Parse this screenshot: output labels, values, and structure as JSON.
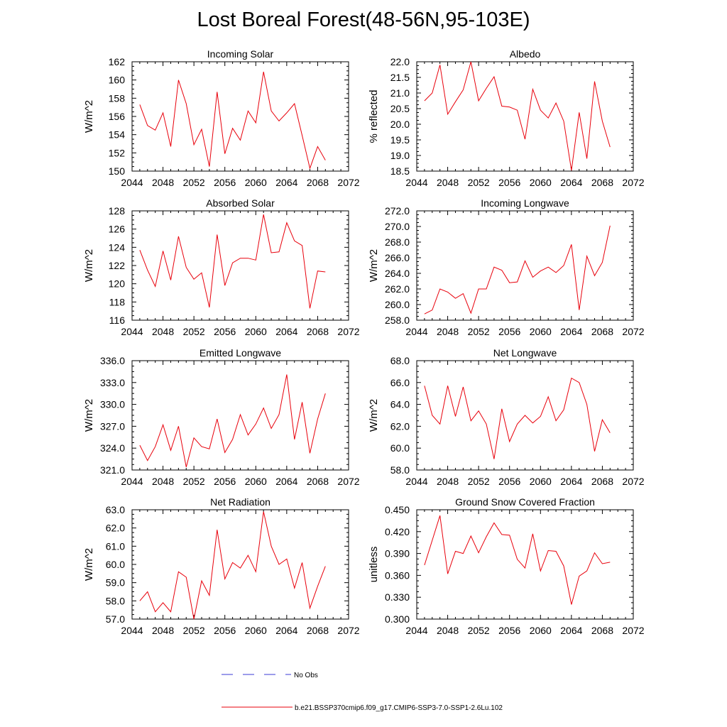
{
  "title": "Lost Boreal Forest(48-56N,95-103E)",
  "legend": [
    {
      "label": "No Obs",
      "color": "#3b3bd6",
      "style": "dashed"
    },
    {
      "label": "b.e21.BSSP370cmip6.f09_g17.CMIP6-SSP3-7.0-SSP1-2.6Lu.102",
      "color": "#e8000b",
      "style": "solid"
    }
  ],
  "series_color": "#e8000b",
  "chart_data": [
    {
      "type": "line",
      "title": "Incoming Solar",
      "ylabel": "W/m^2",
      "xlim": [
        2044,
        2072
      ],
      "ylim": [
        150,
        162
      ],
      "xticks": [
        2044,
        2048,
        2052,
        2056,
        2060,
        2064,
        2068,
        2072
      ],
      "yticks": [
        150,
        152,
        154,
        156,
        158,
        160,
        162
      ],
      "ytick_decimals": 0,
      "x": [
        2045,
        2046,
        2047,
        2048,
        2049,
        2050,
        2051,
        2052,
        2053,
        2054,
        2055,
        2056,
        2057,
        2058,
        2059,
        2060,
        2061,
        2062,
        2063,
        2064,
        2065,
        2066,
        2067,
        2068,
        2069
      ],
      "values": [
        157.3,
        155.0,
        154.5,
        156.4,
        152.7,
        160.0,
        157.4,
        152.9,
        154.6,
        150.5,
        158.7,
        151.9,
        154.7,
        153.4,
        156.6,
        155.3,
        160.9,
        156.6,
        155.5,
        156.4,
        157.4,
        153.9,
        150.3,
        152.7,
        151.2
      ]
    },
    {
      "type": "line",
      "title": "Albedo",
      "ylabel": "% reflected",
      "xlim": [
        2044,
        2072
      ],
      "ylim": [
        18.5,
        22.0
      ],
      "xticks": [
        2044,
        2048,
        2052,
        2056,
        2060,
        2064,
        2068,
        2072
      ],
      "yticks": [
        18.5,
        19.0,
        19.5,
        20.0,
        20.5,
        21.0,
        21.5,
        22.0
      ],
      "ytick_decimals": 1,
      "x": [
        2045,
        2046,
        2047,
        2048,
        2049,
        2050,
        2051,
        2052,
        2053,
        2054,
        2055,
        2056,
        2057,
        2058,
        2059,
        2060,
        2061,
        2062,
        2063,
        2064,
        2065,
        2066,
        2067,
        2068,
        2069
      ],
      "values": [
        20.75,
        21.0,
        21.9,
        20.32,
        20.72,
        21.1,
        22.0,
        20.75,
        21.15,
        21.52,
        20.58,
        20.55,
        20.45,
        19.52,
        21.12,
        20.45,
        20.2,
        20.68,
        20.1,
        18.52,
        20.38,
        18.9,
        21.37,
        20.1,
        19.27
      ]
    },
    {
      "type": "line",
      "title": "Absorbed Solar",
      "ylabel": "W/m^2",
      "xlim": [
        2044,
        2072
      ],
      "ylim": [
        116,
        128
      ],
      "xticks": [
        2044,
        2048,
        2052,
        2056,
        2060,
        2064,
        2068,
        2072
      ],
      "yticks": [
        116,
        118,
        120,
        122,
        124,
        126,
        128
      ],
      "ytick_decimals": 0,
      "x": [
        2045,
        2046,
        2047,
        2048,
        2049,
        2050,
        2051,
        2052,
        2053,
        2054,
        2055,
        2056,
        2057,
        2058,
        2059,
        2060,
        2061,
        2062,
        2063,
        2064,
        2065,
        2066,
        2067,
        2068,
        2069
      ],
      "values": [
        123.7,
        121.5,
        119.7,
        123.6,
        120.4,
        125.2,
        121.8,
        120.5,
        121.2,
        117.4,
        125.4,
        119.8,
        122.3,
        122.8,
        122.8,
        122.6,
        127.6,
        123.4,
        123.5,
        126.7,
        124.7,
        124.2,
        117.3,
        121.4,
        121.3
      ]
    },
    {
      "type": "line",
      "title": "Incoming Longwave",
      "ylabel": "W/m^2",
      "xlim": [
        2044,
        2072
      ],
      "ylim": [
        258.0,
        272.0
      ],
      "xticks": [
        2044,
        2048,
        2052,
        2056,
        2060,
        2064,
        2068,
        2072
      ],
      "yticks": [
        258.0,
        260.0,
        262.0,
        264.0,
        266.0,
        268.0,
        270.0,
        272.0
      ],
      "ytick_decimals": 1,
      "x": [
        2045,
        2046,
        2047,
        2048,
        2049,
        2050,
        2051,
        2052,
        2053,
        2054,
        2055,
        2056,
        2057,
        2058,
        2059,
        2060,
        2061,
        2062,
        2063,
        2064,
        2065,
        2066,
        2067,
        2068,
        2069
      ],
      "values": [
        258.8,
        259.3,
        262.0,
        261.6,
        260.8,
        261.4,
        258.9,
        262.0,
        262.0,
        264.8,
        264.4,
        262.8,
        262.9,
        265.6,
        263.5,
        264.3,
        264.8,
        264.1,
        265.0,
        267.7,
        259.3,
        266.2,
        263.7,
        265.4,
        270.1
      ]
    },
    {
      "type": "line",
      "title": "Emitted Longwave",
      "ylabel": "W/m^2",
      "xlim": [
        2044,
        2072
      ],
      "ylim": [
        321.0,
        336.0
      ],
      "xticks": [
        2044,
        2048,
        2052,
        2056,
        2060,
        2064,
        2068,
        2072
      ],
      "yticks": [
        321.0,
        324.0,
        327.0,
        330.0,
        333.0,
        336.0
      ],
      "ytick_decimals": 1,
      "x": [
        2045,
        2046,
        2047,
        2048,
        2049,
        2050,
        2051,
        2052,
        2053,
        2054,
        2055,
        2056,
        2057,
        2058,
        2059,
        2060,
        2061,
        2062,
        2063,
        2064,
        2065,
        2066,
        2067,
        2068,
        2069
      ],
      "values": [
        324.4,
        322.3,
        324.2,
        327.2,
        323.7,
        327.0,
        321.4,
        325.4,
        324.2,
        323.9,
        328.0,
        323.4,
        325.2,
        328.6,
        325.8,
        327.3,
        329.5,
        326.7,
        328.6,
        334.1,
        325.2,
        330.3,
        323.3,
        328.0,
        331.5
      ]
    },
    {
      "type": "line",
      "title": "Net Longwave",
      "ylabel": "W/m^2",
      "xlim": [
        2044,
        2072
      ],
      "ylim": [
        58.0,
        68.0
      ],
      "xticks": [
        2044,
        2048,
        2052,
        2056,
        2060,
        2064,
        2068,
        2072
      ],
      "yticks": [
        58.0,
        60.0,
        62.0,
        64.0,
        66.0,
        68.0
      ],
      "ytick_decimals": 1,
      "x": [
        2045,
        2046,
        2047,
        2048,
        2049,
        2050,
        2051,
        2052,
        2053,
        2054,
        2055,
        2056,
        2057,
        2058,
        2059,
        2060,
        2061,
        2062,
        2063,
        2064,
        2065,
        2066,
        2067,
        2068,
        2069
      ],
      "values": [
        65.7,
        63.0,
        62.2,
        65.7,
        62.9,
        65.6,
        62.5,
        63.4,
        62.2,
        59.0,
        63.6,
        60.6,
        62.2,
        63.0,
        62.3,
        62.9,
        64.7,
        62.5,
        63.5,
        66.4,
        66.0,
        64.0,
        59.7,
        62.6,
        61.4
      ]
    },
    {
      "type": "line",
      "title": "Net Radiation",
      "ylabel": "W/m^2",
      "xlim": [
        2044,
        2072
      ],
      "ylim": [
        57.0,
        63.0
      ],
      "xticks": [
        2044,
        2048,
        2052,
        2056,
        2060,
        2064,
        2068,
        2072
      ],
      "yticks": [
        57.0,
        58.0,
        59.0,
        60.0,
        61.0,
        62.0,
        63.0
      ],
      "ytick_decimals": 1,
      "x": [
        2045,
        2046,
        2047,
        2048,
        2049,
        2050,
        2051,
        2052,
        2053,
        2054,
        2055,
        2056,
        2057,
        2058,
        2059,
        2060,
        2061,
        2062,
        2063,
        2064,
        2065,
        2066,
        2067,
        2068,
        2069
      ],
      "values": [
        58.0,
        58.5,
        57.4,
        57.9,
        57.4,
        59.6,
        59.3,
        57.0,
        59.1,
        58.3,
        61.9,
        59.2,
        60.1,
        59.8,
        60.5,
        59.6,
        62.9,
        61.0,
        60.0,
        60.3,
        58.7,
        60.1,
        57.6,
        58.8,
        59.9
      ]
    },
    {
      "type": "line",
      "title": "Ground Snow Covered Fraction",
      "ylabel": "unitless",
      "xlim": [
        2044,
        2072
      ],
      "ylim": [
        0.3,
        0.45
      ],
      "xticks": [
        2044,
        2048,
        2052,
        2056,
        2060,
        2064,
        2068,
        2072
      ],
      "yticks": [
        0.3,
        0.33,
        0.36,
        0.39,
        0.42,
        0.45
      ],
      "ytick_decimals": 3,
      "x": [
        2045,
        2046,
        2047,
        2048,
        2049,
        2050,
        2051,
        2052,
        2053,
        2054,
        2055,
        2056,
        2057,
        2058,
        2059,
        2060,
        2061,
        2062,
        2063,
        2064,
        2065,
        2066,
        2067,
        2068,
        2069
      ],
      "values": [
        0.374,
        0.408,
        0.442,
        0.362,
        0.393,
        0.39,
        0.414,
        0.391,
        0.413,
        0.432,
        0.416,
        0.415,
        0.382,
        0.37,
        0.417,
        0.366,
        0.394,
        0.393,
        0.373,
        0.32,
        0.359,
        0.366,
        0.391,
        0.376,
        0.378
      ]
    }
  ]
}
